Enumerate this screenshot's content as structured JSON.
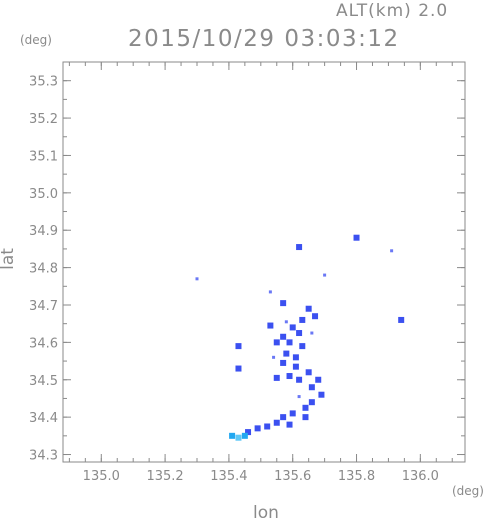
{
  "header": {
    "altitude_label": "ALT(km) 2.0",
    "datetime": "2015/10/29 03:03:12"
  },
  "chart_data": {
    "type": "heatmap",
    "title": "2015/10/29 03:03:12",
    "xlabel": "lon",
    "ylabel": "lat",
    "x_unit": "(deg)",
    "y_unit": "(deg)",
    "xlim": [
      134.88,
      136.14
    ],
    "ylim": [
      34.28,
      35.35
    ],
    "xticks": [
      "135.0",
      "135.2",
      "135.4",
      "135.6",
      "135.8",
      "136.0"
    ],
    "yticks": [
      "34.3",
      "34.4",
      "34.5",
      "34.6",
      "34.7",
      "34.8",
      "34.9",
      "35.0",
      "35.1",
      "35.2",
      "35.3"
    ],
    "colors": {
      "moderate": "#3b50f0",
      "low": "#6a78f5",
      "light": "#22a7f0",
      "lighter": "#5ec8f7"
    },
    "cells": [
      {
        "lon": 135.8,
        "lat": 34.88,
        "level": "moderate"
      },
      {
        "lon": 135.62,
        "lat": 34.855,
        "level": "moderate"
      },
      {
        "lon": 135.91,
        "lat": 34.845,
        "level": "low"
      },
      {
        "lon": 135.7,
        "lat": 34.78,
        "level": "low"
      },
      {
        "lon": 135.3,
        "lat": 34.77,
        "level": "low"
      },
      {
        "lon": 135.53,
        "lat": 34.735,
        "level": "low"
      },
      {
        "lon": 135.57,
        "lat": 34.705,
        "level": "moderate"
      },
      {
        "lon": 135.65,
        "lat": 34.69,
        "level": "moderate"
      },
      {
        "lon": 135.67,
        "lat": 34.67,
        "level": "moderate"
      },
      {
        "lon": 135.63,
        "lat": 34.66,
        "level": "moderate"
      },
      {
        "lon": 135.94,
        "lat": 34.66,
        "level": "moderate"
      },
      {
        "lon": 135.58,
        "lat": 34.655,
        "level": "low"
      },
      {
        "lon": 135.53,
        "lat": 34.645,
        "level": "moderate"
      },
      {
        "lon": 135.6,
        "lat": 34.64,
        "level": "moderate"
      },
      {
        "lon": 135.62,
        "lat": 34.625,
        "level": "moderate"
      },
      {
        "lon": 135.66,
        "lat": 34.625,
        "level": "low"
      },
      {
        "lon": 135.57,
        "lat": 34.615,
        "level": "moderate"
      },
      {
        "lon": 135.55,
        "lat": 34.6,
        "level": "moderate"
      },
      {
        "lon": 135.59,
        "lat": 34.6,
        "level": "moderate"
      },
      {
        "lon": 135.63,
        "lat": 34.59,
        "level": "moderate"
      },
      {
        "lon": 135.43,
        "lat": 34.59,
        "level": "moderate"
      },
      {
        "lon": 135.58,
        "lat": 34.57,
        "level": "moderate"
      },
      {
        "lon": 135.61,
        "lat": 34.56,
        "level": "moderate"
      },
      {
        "lon": 135.54,
        "lat": 34.56,
        "level": "low"
      },
      {
        "lon": 135.57,
        "lat": 34.545,
        "level": "moderate"
      },
      {
        "lon": 135.61,
        "lat": 34.535,
        "level": "moderate"
      },
      {
        "lon": 135.43,
        "lat": 34.53,
        "level": "moderate"
      },
      {
        "lon": 135.65,
        "lat": 34.52,
        "level": "moderate"
      },
      {
        "lon": 135.59,
        "lat": 34.51,
        "level": "moderate"
      },
      {
        "lon": 135.55,
        "lat": 34.505,
        "level": "moderate"
      },
      {
        "lon": 135.62,
        "lat": 34.5,
        "level": "moderate"
      },
      {
        "lon": 135.68,
        "lat": 34.5,
        "level": "moderate"
      },
      {
        "lon": 135.66,
        "lat": 34.48,
        "level": "moderate"
      },
      {
        "lon": 135.69,
        "lat": 34.46,
        "level": "moderate"
      },
      {
        "lon": 135.62,
        "lat": 34.455,
        "level": "low"
      },
      {
        "lon": 135.66,
        "lat": 34.44,
        "level": "moderate"
      },
      {
        "lon": 135.64,
        "lat": 34.425,
        "level": "moderate"
      },
      {
        "lon": 135.6,
        "lat": 34.41,
        "level": "moderate"
      },
      {
        "lon": 135.57,
        "lat": 34.4,
        "level": "moderate"
      },
      {
        "lon": 135.64,
        "lat": 34.4,
        "level": "moderate"
      },
      {
        "lon": 135.55,
        "lat": 34.385,
        "level": "moderate"
      },
      {
        "lon": 135.59,
        "lat": 34.38,
        "level": "moderate"
      },
      {
        "lon": 135.52,
        "lat": 34.375,
        "level": "moderate"
      },
      {
        "lon": 135.49,
        "lat": 34.37,
        "level": "moderate"
      },
      {
        "lon": 135.46,
        "lat": 34.36,
        "level": "moderate"
      },
      {
        "lon": 135.45,
        "lat": 34.35,
        "level": "light"
      },
      {
        "lon": 135.43,
        "lat": 34.345,
        "level": "lighter"
      },
      {
        "lon": 135.41,
        "lat": 34.35,
        "level": "light"
      }
    ]
  }
}
